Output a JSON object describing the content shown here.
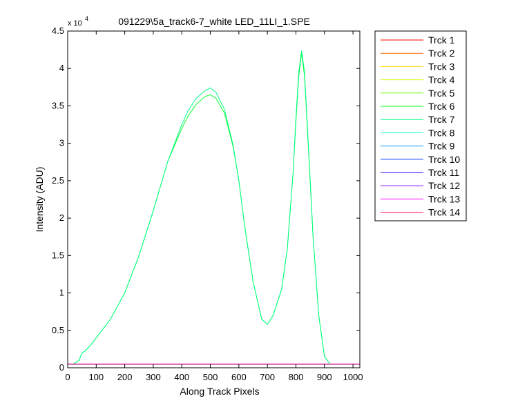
{
  "chart_data": {
    "type": "line",
    "title": "091229\\5a_track6-7_white LED_11LI_1.SPE",
    "xlabel": "Along Track Pixels",
    "ylabel": "Intensity (ADU)",
    "y_multiplier": "x 10",
    "y_exponent": "4",
    "xlim": [
      0,
      1024
    ],
    "ylim": [
      0,
      4.5
    ],
    "x_ticks": [
      0,
      100,
      200,
      300,
      400,
      500,
      600,
      700,
      800,
      900,
      1000
    ],
    "y_ticks": [
      0,
      0.5,
      1,
      1.5,
      2,
      2.5,
      3,
      3.5,
      4,
      4.5
    ],
    "y_tick_labels": [
      "0",
      "0.5",
      "1",
      "1.5",
      "2",
      "2.5",
      "3",
      "3.5",
      "4",
      "4.5"
    ],
    "grid": false,
    "legend_position": "outside-right",
    "series": [
      {
        "name": "Trck 1",
        "color": "#ff0000",
        "x": [
          0,
          1024
        ],
        "y": [
          0.05,
          0.05
        ]
      },
      {
        "name": "Trck 2",
        "color": "#ff6a00",
        "x": [
          0,
          1024
        ],
        "y": [
          0.05,
          0.05
        ]
      },
      {
        "name": "Trck 3",
        "color": "#ffd400",
        "x": [
          0,
          1024
        ],
        "y": [
          0.05,
          0.05
        ]
      },
      {
        "name": "Trck 4",
        "color": "#c8ff00",
        "x": [
          0,
          1024
        ],
        "y": [
          0.05,
          0.05
        ]
      },
      {
        "name": "Trck 5",
        "color": "#66ff00",
        "x": [
          0,
          1024
        ],
        "y": [
          0.05,
          0.05
        ]
      },
      {
        "name": "Trck 6",
        "color": "#00ff22",
        "x": [
          0,
          20,
          40,
          50,
          60,
          80,
          100,
          150,
          200,
          250,
          300,
          350,
          400,
          420,
          450,
          480,
          500,
          520,
          550,
          580,
          600,
          620,
          650,
          680,
          700,
          720,
          750,
          770,
          790,
          800,
          810,
          820,
          830,
          840,
          860,
          880,
          900,
          920,
          950,
          1024
        ],
        "y": [
          0.05,
          0.05,
          0.1,
          0.2,
          0.22,
          0.3,
          0.4,
          0.65,
          1.0,
          1.5,
          2.1,
          2.75,
          3.2,
          3.35,
          3.52,
          3.62,
          3.65,
          3.6,
          3.4,
          2.95,
          2.5,
          1.9,
          1.15,
          0.65,
          0.58,
          0.7,
          1.05,
          1.6,
          2.6,
          3.3,
          3.9,
          4.2,
          3.9,
          3.2,
          1.75,
          0.7,
          0.15,
          0.05,
          0.05,
          0.05
        ]
      },
      {
        "name": "Trck 7",
        "color": "#00ff88",
        "x": [
          0,
          20,
          40,
          50,
          60,
          80,
          100,
          150,
          200,
          250,
          300,
          350,
          400,
          420,
          450,
          480,
          500,
          520,
          550,
          580,
          600,
          620,
          650,
          680,
          700,
          720,
          750,
          770,
          790,
          800,
          810,
          820,
          830,
          840,
          860,
          880,
          900,
          920,
          950,
          1024
        ],
        "y": [
          0.05,
          0.05,
          0.1,
          0.2,
          0.22,
          0.3,
          0.4,
          0.65,
          1.0,
          1.5,
          2.1,
          2.75,
          3.25,
          3.42,
          3.6,
          3.7,
          3.74,
          3.68,
          3.45,
          2.97,
          2.5,
          1.9,
          1.15,
          0.65,
          0.58,
          0.7,
          1.05,
          1.6,
          2.6,
          3.35,
          3.95,
          4.24,
          3.95,
          3.25,
          1.75,
          0.7,
          0.15,
          0.05,
          0.05,
          0.05
        ]
      },
      {
        "name": "Trck 8",
        "color": "#00ffd5",
        "x": [
          0,
          1024
        ],
        "y": [
          0.05,
          0.05
        ]
      },
      {
        "name": "Trck 9",
        "color": "#0099ff",
        "x": [
          0,
          1024
        ],
        "y": [
          0.05,
          0.05
        ]
      },
      {
        "name": "Trck 10",
        "color": "#0033ff",
        "x": [
          0,
          1024
        ],
        "y": [
          0.05,
          0.05
        ]
      },
      {
        "name": "Trck 11",
        "color": "#2200ff",
        "x": [
          0,
          1024
        ],
        "y": [
          0.05,
          0.05
        ]
      },
      {
        "name": "Trck 12",
        "color": "#8a00ff",
        "x": [
          0,
          1024
        ],
        "y": [
          0.05,
          0.05
        ]
      },
      {
        "name": "Trck 13",
        "color": "#ff00ff",
        "x": [
          0,
          1024
        ],
        "y": [
          0.05,
          0.05
        ]
      },
      {
        "name": "Trck 14",
        "color": "#ff0066",
        "x": [
          0,
          1024
        ],
        "y": [
          0.05,
          0.05
        ]
      }
    ]
  }
}
